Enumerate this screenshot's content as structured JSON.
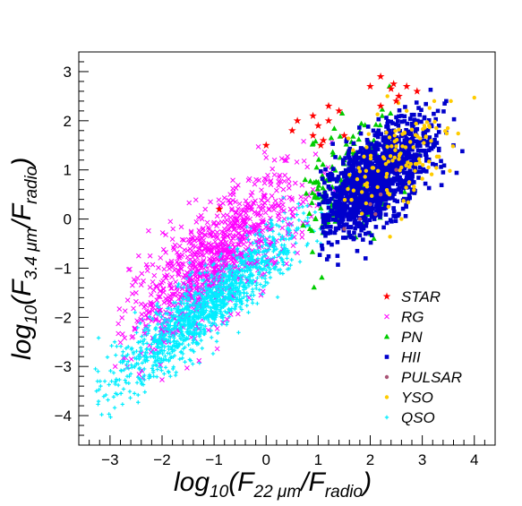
{
  "chart_data": {
    "type": "scatter",
    "title": "",
    "xlabel": "log10(F22 μm/Fradio)",
    "ylabel": "log10(F3.4 μm/Fradio)",
    "xlabel_parts": {
      "pre": "log",
      "pre_sub": "10",
      "main1": "(F",
      "main_sub": "22 μm",
      "main2": "/F",
      "end_sub": "radio",
      "close": ")"
    },
    "ylabel_parts": {
      "pre": "log",
      "pre_sub": "10",
      "main1": "(F",
      "main_sub": "3.4 μm",
      "main2": "/F",
      "end_sub": "radio",
      "close": ")"
    },
    "xlim": [
      -3.6,
      4.4
    ],
    "ylim": [
      -4.6,
      3.4
    ],
    "x_ticks": [
      -3,
      -2,
      -1,
      0,
      1,
      2,
      3,
      4
    ],
    "y_ticks": [
      -4,
      -3,
      -2,
      -1,
      0,
      1,
      2,
      3
    ],
    "x_tick_labels": [
      "−3",
      "−2",
      "−1",
      "0",
      "1",
      "2",
      "3",
      "4"
    ],
    "y_tick_labels": [
      "−4",
      "−3",
      "−2",
      "−1",
      "0",
      "1",
      "2",
      "3"
    ],
    "grid": false,
    "legend_position": "bottom-right",
    "series": [
      {
        "name": "STAR",
        "marker": "star",
        "color": "#ff0000",
        "points": [
          [
            0,
            1.5
          ],
          [
            0.5,
            1.8
          ],
          [
            0.6,
            2.0
          ],
          [
            0.9,
            2.1
          ],
          [
            1.0,
            1.9
          ],
          [
            1.1,
            1.6
          ],
          [
            1.2,
            2.0
          ],
          [
            1.4,
            2.2
          ],
          [
            1.5,
            1.7
          ],
          [
            0.9,
            1.7
          ],
          [
            1.05,
            1.5
          ],
          [
            2.2,
            2.9
          ],
          [
            2.45,
            2.75
          ],
          [
            2.5,
            2.4
          ],
          [
            2.55,
            2.5
          ],
          [
            2.7,
            2.7
          ],
          [
            2.9,
            2.6
          ],
          [
            2.2,
            2.3
          ],
          [
            1.2,
            2.3
          ],
          [
            -0.9,
            0.2
          ],
          [
            2.0,
            2.7
          ],
          [
            2.4,
            2.65
          ]
        ]
      },
      {
        "name": "RG",
        "marker": "cross",
        "color": "#ff00ff",
        "points": []
      },
      {
        "name": "PN",
        "marker": "triangle",
        "color": "#00cc00",
        "points": []
      },
      {
        "name": "HII",
        "marker": "square",
        "color": "#0000cc",
        "points": []
      },
      {
        "name": "PULSAR",
        "marker": "circle",
        "color": "#aa5577",
        "points": [
          [
            2.0,
            0.3
          ],
          [
            2.2,
            0.5
          ],
          [
            1.8,
            0.0
          ],
          [
            2.5,
            1.0
          ],
          [
            1.5,
            -0.2
          ],
          [
            2.1,
            0.1
          ]
        ]
      },
      {
        "name": "YSO",
        "marker": "circle",
        "color": "#ffcc00",
        "points": []
      },
      {
        "name": "QSO",
        "marker": "plus",
        "color": "#00eeff",
        "points": []
      }
    ],
    "clusters": [
      {
        "series": "RG",
        "count": 950,
        "x_range": [
          -2.9,
          1.4
        ],
        "slope": 0.78,
        "intercept": -0.05,
        "scatter": 0.55,
        "x_center": -1.0,
        "x_spread": 0.85
      },
      {
        "series": "QSO",
        "count": 1400,
        "x_range": [
          -3.3,
          1.3
        ],
        "slope": 0.85,
        "intercept": -0.8,
        "scatter": 0.35,
        "x_center": -1.1,
        "x_spread": 0.9
      },
      {
        "series": "HII",
        "count": 1300,
        "x_range": [
          1.0,
          3.8
        ],
        "slope": 0.7,
        "intercept": -0.65,
        "scatter": 0.45,
        "x_center": 2.1,
        "x_spread": 0.55
      },
      {
        "series": "PN",
        "count": 170,
        "x_range": [
          0.7,
          3.4
        ],
        "slope": 0.45,
        "intercept": 0.0,
        "scatter": 0.6,
        "x_center": 1.5,
        "x_spread": 0.55
      },
      {
        "series": "YSO",
        "count": 120,
        "x_range": [
          1.3,
          4.0
        ],
        "slope": 0.6,
        "intercept": -0.3,
        "scatter": 0.5,
        "x_center": 2.5,
        "x_spread": 0.6
      }
    ]
  }
}
